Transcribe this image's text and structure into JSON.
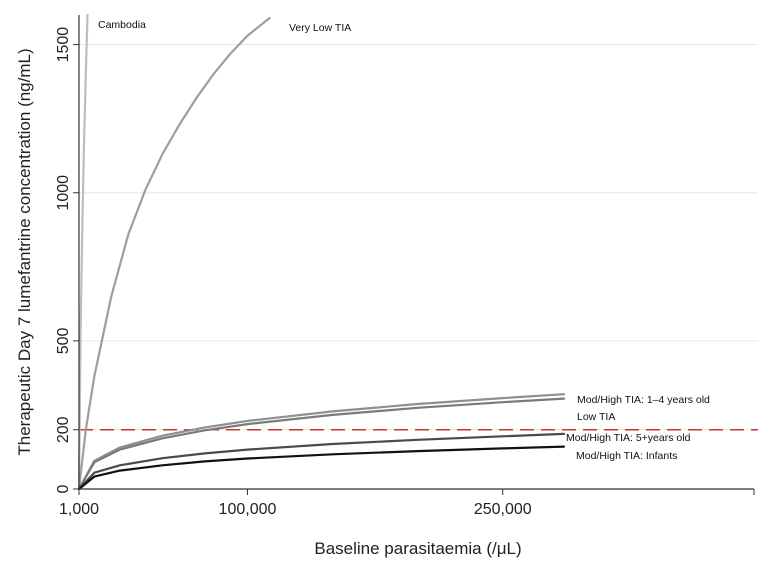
{
  "chart_data": {
    "type": "line",
    "xlabel": "Baseline parasitaemia (/μL)",
    "ylabel": "Therapeutic Day 7 lumefantrine concentration (ng/mL)",
    "xlim": [
      1000,
      400000
    ],
    "ylim": [
      0,
      1600
    ],
    "x_ticks": [
      1000,
      100000,
      250000
    ],
    "x_tick_labels": [
      "1,000",
      "100,000",
      "250,000"
    ],
    "y_ticks": [
      0,
      200,
      500,
      1000,
      1500
    ],
    "y_tick_labels": [
      "0",
      "200",
      "500",
      "1000",
      "1500"
    ],
    "grid": "horizontal",
    "reference_line": {
      "y": 200,
      "style": "dashed",
      "color": "#c0392b"
    },
    "series": [
      {
        "name": "Cambodia",
        "color": "#bdbdbd",
        "x": [
          1000,
          2000,
          3000,
          4000,
          5000,
          6000
        ],
        "y": [
          0,
          560,
          900,
          1180,
          1400,
          1600
        ]
      },
      {
        "name": "Very Low TIA",
        "color": "#9e9e9e",
        "x": [
          1000,
          5000,
          10000,
          20000,
          30000,
          40000,
          50000,
          60000,
          70000,
          80000,
          90000,
          100000,
          113000
        ],
        "y": [
          0,
          200,
          380,
          650,
          860,
          1010,
          1130,
          1230,
          1320,
          1400,
          1470,
          1530,
          1590
        ]
      },
      {
        "name": "Mod/High TIA: 1–4 years old",
        "color": "#8f8f8f",
        "x": [
          1000,
          10000,
          25000,
          50000,
          75000,
          100000,
          150000,
          200000,
          250000,
          286000
        ],
        "y": [
          0,
          95,
          140,
          180,
          208,
          230,
          262,
          287,
          307,
          320
        ]
      },
      {
        "name": "Low TIA",
        "color": "#7a7a7a",
        "x": [
          1000,
          10000,
          25000,
          50000,
          75000,
          100000,
          150000,
          200000,
          250000,
          286000
        ],
        "y": [
          0,
          90,
          133,
          171,
          198,
          219,
          250,
          274,
          293,
          305
        ]
      },
      {
        "name": "Mod/High TIA: 5+years old",
        "color": "#4a4a4a",
        "x": [
          1000,
          10000,
          25000,
          50000,
          75000,
          100000,
          150000,
          200000,
          250000,
          286000
        ],
        "y": [
          0,
          55,
          80,
          104,
          120,
          133,
          152,
          166,
          178,
          186
        ]
      },
      {
        "name": "Mod/High TIA: Infants",
        "color": "#111111",
        "x": [
          1000,
          10000,
          25000,
          50000,
          75000,
          100000,
          150000,
          200000,
          250000,
          286000
        ],
        "y": [
          0,
          42,
          62,
          80,
          93,
          103,
          117,
          128,
          137,
          143
        ]
      }
    ]
  }
}
